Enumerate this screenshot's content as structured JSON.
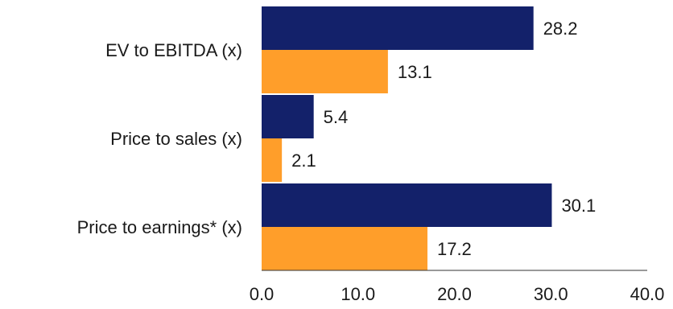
{
  "chart_data": {
    "type": "bar",
    "orientation": "horizontal",
    "categories": [
      "EV to EBITDA (x)",
      "Price to sales (x)",
      "Price to earnings* (x)"
    ],
    "series": [
      {
        "values": [
          28.2,
          5.4,
          30.1
        ],
        "color": "#13216a"
      },
      {
        "values": [
          13.1,
          2.1,
          17.2
        ],
        "color": "#ff9e2a"
      }
    ],
    "data_labels": [
      [
        "28.2",
        "5.4",
        "30.1"
      ],
      [
        "13.1",
        "2.1",
        "17.2"
      ]
    ],
    "x_ticks": [
      "0.0",
      "10.0",
      "20.0",
      "30.0",
      "40.0"
    ],
    "xlim": [
      0,
      40
    ],
    "title": "",
    "xlabel": "",
    "ylabel": "",
    "grid": false,
    "legend": "none"
  }
}
